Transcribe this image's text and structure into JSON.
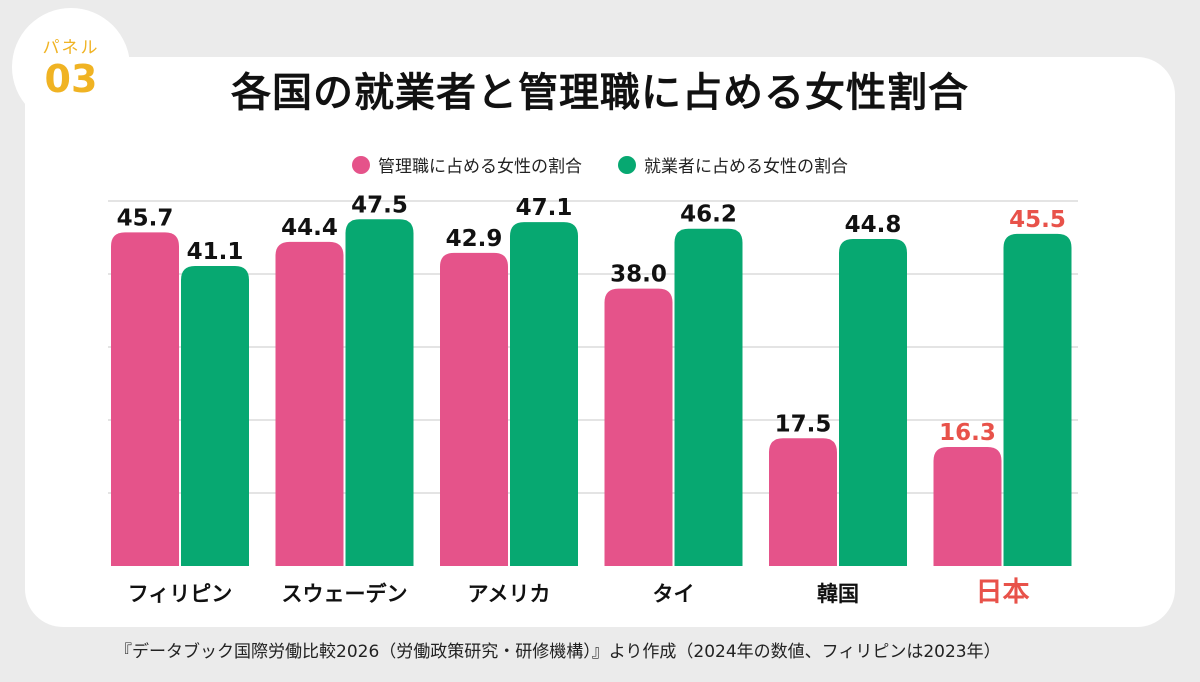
{
  "badge": {
    "label": "パネル",
    "number": "03"
  },
  "title": "各国の就業者と管理職に占める女性割合",
  "colors": {
    "managers": "#e5538a",
    "workers": "#07a871",
    "highlight": "#e8524a",
    "text": "#111111",
    "grid": "#c8c8c8"
  },
  "chart_data": {
    "type": "bar",
    "title": "各国の就業者と管理職に占める女性割合",
    "categories": [
      "フィリピン",
      "スウェーデン",
      "アメリカ",
      "タイ",
      "韓国",
      "日本"
    ],
    "series": [
      {
        "name": "管理職に占める女性の割合",
        "values": [
          45.7,
          44.4,
          42.9,
          38.0,
          17.5,
          16.3
        ]
      },
      {
        "name": "就業者に占める女性の割合",
        "values": [
          41.1,
          47.5,
          47.1,
          46.2,
          44.8,
          45.5
        ]
      }
    ],
    "value_labels": [
      [
        "45.7",
        "44.4",
        "42.9",
        "38.0",
        "17.5",
        "16.3"
      ],
      [
        "41.1",
        "47.5",
        "47.1",
        "46.2",
        "44.8",
        "45.5"
      ]
    ],
    "highlight_category": "日本",
    "ylim": [
      0,
      50
    ],
    "grid": true,
    "legend": "top-center"
  },
  "source": "『データブック国際労働比較2026（労働政策研究・研修機構）』より作成（2024年の数値、フィリピンは2023年）"
}
